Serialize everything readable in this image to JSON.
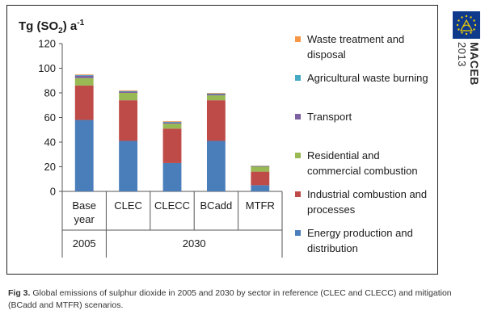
{
  "chart_data": {
    "type": "bar",
    "stacked": true,
    "ylabel": {
      "prefix": "Tg (SO",
      "sub": "2",
      "suffix": ") a",
      "sup": "-1"
    },
    "ylim": [
      0,
      120
    ],
    "yticks": [
      0,
      20,
      40,
      60,
      80,
      100,
      120
    ],
    "categories": [
      "Base year",
      "CLEC",
      "CLECC",
      "BCadd",
      "MTFR"
    ],
    "groups": [
      {
        "label": "2005",
        "categories": [
          "Base year"
        ]
      },
      {
        "label": "2030",
        "categories": [
          "CLEC",
          "CLECC",
          "BCadd",
          "MTFR"
        ]
      }
    ],
    "series": [
      {
        "name": "Energy production and distribution",
        "color": "#4a7ebb",
        "values": [
          58,
          41,
          23,
          41,
          5
        ]
      },
      {
        "name": "Industrial combustion and processes",
        "color": "#be4b48",
        "values": [
          28,
          33,
          28,
          33,
          11
        ]
      },
      {
        "name": "Residential and commercial combustion",
        "color": "#98b954",
        "values": [
          6,
          6,
          4,
          4,
          4
        ]
      },
      {
        "name": "Transport",
        "color": "#7d60a0",
        "values": [
          2,
          1,
          1,
          1,
          0.3
        ]
      },
      {
        "name": "Agricultural waste burning",
        "color": "#46aac5",
        "values": [
          0.5,
          0.5,
          0.5,
          0.5,
          0.3
        ]
      },
      {
        "name": "Waste treatment and disposal",
        "color": "#f79646",
        "values": [
          0.5,
          0.5,
          0.5,
          0.5,
          0.3
        ]
      }
    ],
    "legend_order": [
      {
        "series": 5,
        "lines": [
          "Waste treatment and",
          "disposal"
        ]
      },
      {
        "series": 4,
        "lines": [
          "Agricultural waste burning"
        ]
      },
      {
        "series": 3,
        "lines": [
          "Transport"
        ]
      },
      {
        "series": 2,
        "lines": [
          "Residential and",
          "commercial combustion"
        ]
      },
      {
        "series": 1,
        "lines": [
          "Industrial combustion and",
          "processes"
        ]
      },
      {
        "series": 0,
        "lines": [
          "Energy production and",
          "distribution"
        ]
      }
    ],
    "category_lines": [
      [
        "Base",
        "year"
      ],
      [
        "CLEC"
      ],
      [
        "CLECC"
      ],
      [
        "BCadd"
      ],
      [
        "MTFR"
      ]
    ],
    "legend_position": "right",
    "grid": false
  },
  "logo": {
    "name": "MACEB",
    "year": "2013"
  },
  "caption": {
    "label": "Fig 3.",
    "text": " Global emissions of sulphur dioxide in 2005 and 2030 by sector in reference (CLEC and CLECC) and mitigation (BCadd and MTFR) scenarios."
  }
}
